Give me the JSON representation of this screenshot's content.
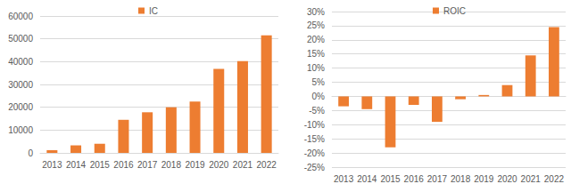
{
  "chart_data": [
    {
      "type": "bar",
      "categories": [
        "2013",
        "2014",
        "2015",
        "2016",
        "2017",
        "2018",
        "2019",
        "2020",
        "2021",
        "2022"
      ],
      "series": [
        {
          "name": "IC",
          "color": "#ed7d31",
          "values": [
            1200,
            3300,
            4000,
            14500,
            17800,
            20000,
            22500,
            36800,
            40200,
            51500
          ]
        }
      ],
      "ylim": [
        0,
        60000
      ],
      "yticks": [
        0,
        10000,
        20000,
        30000,
        40000,
        50000,
        60000
      ],
      "grid": true,
      "legend": "top"
    },
    {
      "type": "bar",
      "categories": [
        "2013",
        "2014",
        "2015",
        "2016",
        "2017",
        "2018",
        "2019",
        "2020",
        "2021",
        "2022"
      ],
      "series": [
        {
          "name": "ROIC",
          "color": "#ed7d31",
          "values": [
            -3.5,
            -4.5,
            -18,
            -3,
            -9,
            -1,
            0.5,
            4,
            14.5,
            24.5
          ]
        }
      ],
      "ylim": [
        -25,
        30
      ],
      "yticks": [
        {
          "value": -25,
          "label": "-25%"
        },
        {
          "value": -20,
          "label": "-20%"
        },
        {
          "value": -15,
          "label": "-15%"
        },
        {
          "value": -10,
          "label": "-10%"
        },
        {
          "value": -5,
          "label": "-5%"
        },
        {
          "value": 0,
          "label": "0%"
        },
        {
          "value": 5,
          "label": "5%"
        },
        {
          "value": 10,
          "label": "10%"
        },
        {
          "value": 15,
          "label": "15%"
        },
        {
          "value": 20,
          "label": "20%"
        },
        {
          "value": 25,
          "label": "25%"
        },
        {
          "value": 30,
          "label": "30%"
        }
      ],
      "grid": true,
      "legend": "top"
    }
  ]
}
